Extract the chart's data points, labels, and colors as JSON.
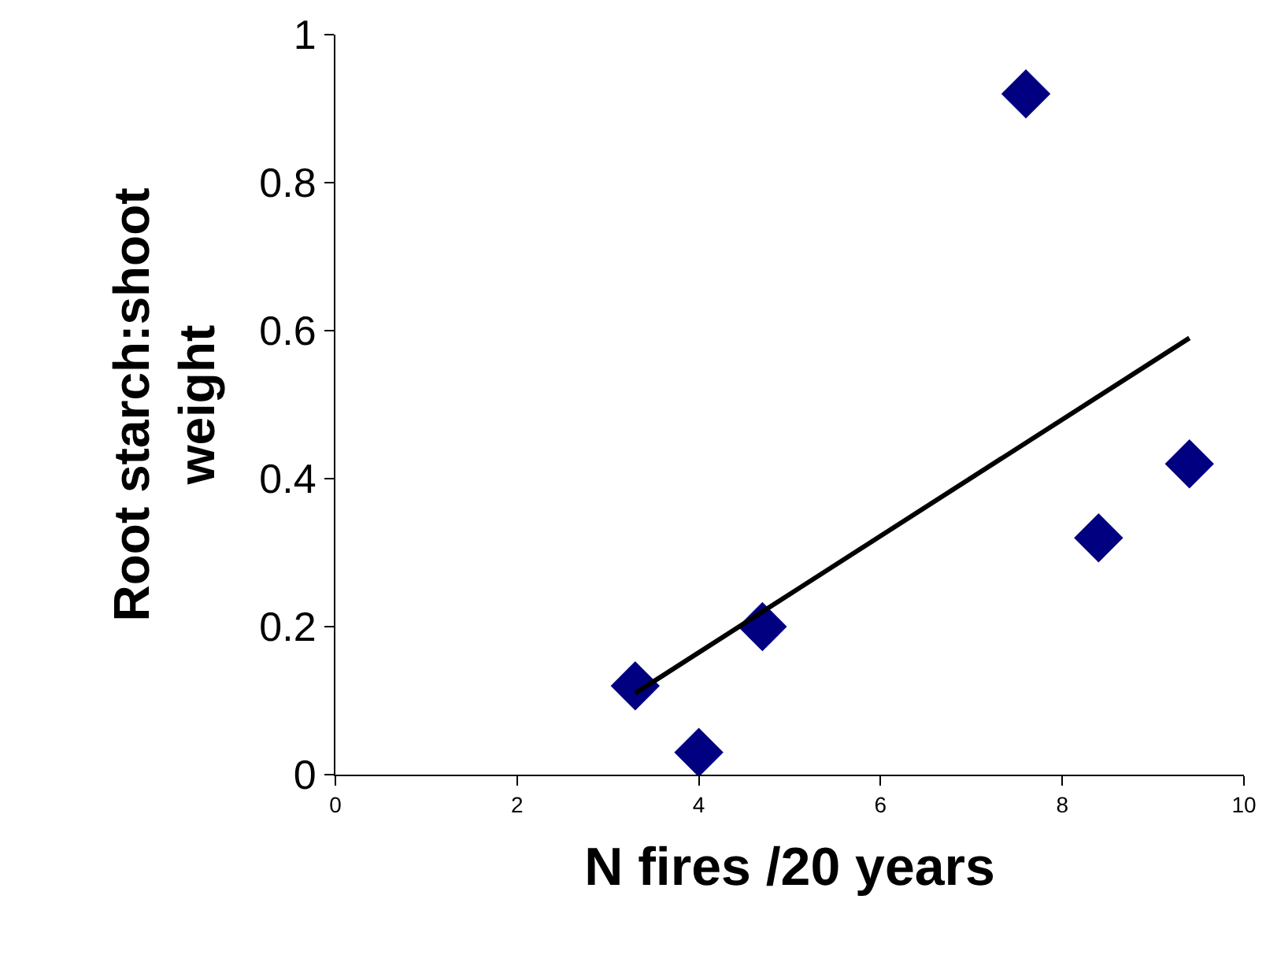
{
  "chart_data": {
    "type": "scatter",
    "xlabel": "N fires /20 years",
    "ylabel": "Root starch:shoot weight",
    "xlim": [
      0,
      10
    ],
    "xticks": [
      0,
      2,
      4,
      6,
      8,
      10
    ],
    "ylim": [
      0,
      1
    ],
    "yticks": [
      0,
      0.2,
      0.4,
      0.6,
      0.8,
      {
        "value": 1,
        "label": "1"
      }
    ],
    "grid": false,
    "marker": "diamond",
    "series": [
      {
        "color": "#000080",
        "x": [
          3.3,
          4.0,
          4.7,
          7.6,
          8.4,
          9.4
        ],
        "values": [
          0.12,
          0.03,
          0.2,
          0.92,
          0.32,
          0.42
        ]
      },
      {
        "type": "line",
        "color": "#000000",
        "marker": "none",
        "line_style": "solid",
        "x": [
          3.3,
          9.4
        ],
        "values": [
          0.11,
          0.59
        ]
      }
    ]
  }
}
